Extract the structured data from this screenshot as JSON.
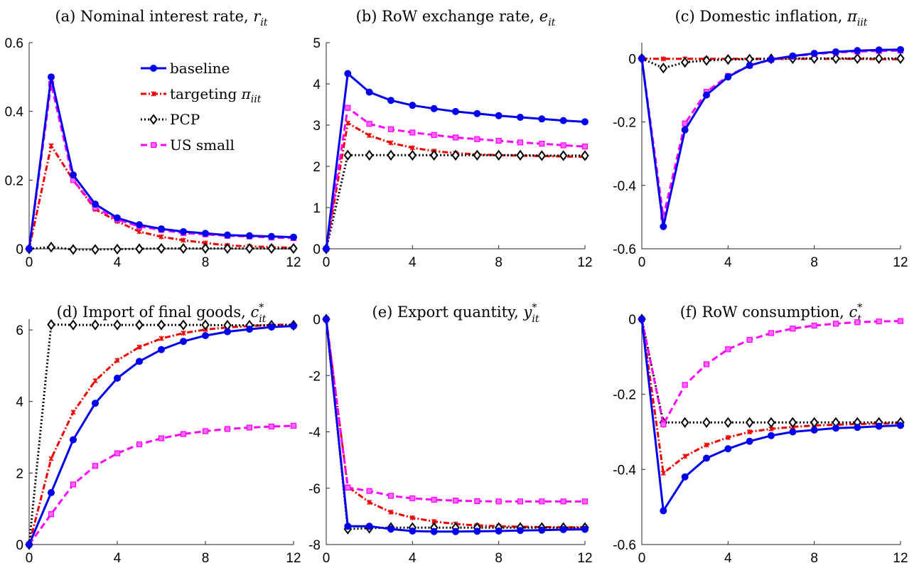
{
  "series_meta": [
    {
      "name": "baseline",
      "label_main": "baseline",
      "label_math": "",
      "label_sub": "",
      "label_sup": "",
      "color": "#0000ee",
      "dash": "",
      "marker": "circle"
    },
    {
      "name": "targeting πiit",
      "label_main": "targeting ",
      "label_math": "π",
      "label_sub": "iit",
      "label_sup": "",
      "color": "#ee0000",
      "dash": "8,3,2,3",
      "marker": "star"
    },
    {
      "name": "PCP",
      "label_main": "PCP",
      "label_math": "",
      "label_sub": "",
      "label_sup": "",
      "color": "#000000",
      "dash": "2,3",
      "marker": "diamond"
    },
    {
      "name": "US small",
      "label_main": "US small",
      "label_math": "",
      "label_sub": "",
      "label_sup": "",
      "color": "#ff00ff",
      "dash": "9,5",
      "marker": "square"
    }
  ],
  "chart_data": [
    {
      "type": "line",
      "title_text": "(a) Nominal interest rate, ",
      "title_math": "r",
      "title_sub": "it",
      "title_sup": "",
      "x": [
        0,
        1,
        2,
        3,
        4,
        5,
        6,
        7,
        8,
        9,
        10,
        11,
        12
      ],
      "xlim": [
        0,
        12
      ],
      "ylim": [
        0,
        0.6
      ],
      "xticks": [
        0,
        4,
        8,
        12
      ],
      "yticks": [
        0,
        0.2,
        0.4,
        0.6
      ],
      "ytick_labels": [
        "0",
        "0.2",
        "0.4",
        "0.6"
      ],
      "legend": true,
      "series": [
        {
          "name": "baseline",
          "values": [
            0,
            0.5,
            0.215,
            0.13,
            0.09,
            0.07,
            0.058,
            0.05,
            0.045,
            0.04,
            0.038,
            0.036,
            0.034
          ]
        },
        {
          "name": "targeting πiit",
          "values": [
            0,
            0.3,
            0.2,
            0.115,
            0.08,
            0.05,
            0.035,
            0.025,
            0.017,
            0.01,
            0.007,
            0.005,
            0.003
          ]
        },
        {
          "name": "PCP",
          "values": [
            0,
            0.005,
            -0.002,
            -0.002,
            -0.001,
            0,
            0.001,
            0.001,
            0.001,
            0.001,
            0.001,
            0.001,
            0.001
          ]
        },
        {
          "name": "US small",
          "values": [
            0,
            0.48,
            0.2,
            0.12,
            0.085,
            0.065,
            0.055,
            0.046,
            0.042,
            0.038,
            0.036,
            0.033,
            0.031
          ]
        }
      ]
    },
    {
      "type": "line",
      "title_text": "(b) RoW exchange rate, ",
      "title_math": "e",
      "title_sub": "it",
      "title_sup": "",
      "x": [
        0,
        1,
        2,
        3,
        4,
        5,
        6,
        7,
        8,
        9,
        10,
        11,
        12
      ],
      "xlim": [
        0,
        12
      ],
      "ylim": [
        0,
        5
      ],
      "xticks": [
        0,
        4,
        8,
        12
      ],
      "yticks": [
        0,
        1,
        2,
        3,
        4,
        5
      ],
      "ytick_labels": [
        "0",
        "1",
        "2",
        "3",
        "4",
        "5"
      ],
      "legend": false,
      "series": [
        {
          "name": "baseline",
          "values": [
            0,
            4.25,
            3.8,
            3.6,
            3.48,
            3.4,
            3.33,
            3.28,
            3.23,
            3.19,
            3.15,
            3.11,
            3.08
          ]
        },
        {
          "name": "targeting πiit",
          "values": [
            0,
            3.05,
            2.75,
            2.57,
            2.45,
            2.37,
            2.32,
            2.29,
            2.27,
            2.26,
            2.25,
            2.24,
            2.23
          ]
        },
        {
          "name": "PCP",
          "values": [
            0,
            2.27,
            2.27,
            2.27,
            2.27,
            2.27,
            2.27,
            2.27,
            2.27,
            2.27,
            2.26,
            2.26,
            2.26
          ]
        },
        {
          "name": "US small",
          "values": [
            0,
            3.42,
            3.03,
            2.9,
            2.82,
            2.76,
            2.7,
            2.66,
            2.62,
            2.58,
            2.55,
            2.51,
            2.48
          ]
        }
      ]
    },
    {
      "type": "line",
      "title_text": "(c) Domestic inflation, ",
      "title_math": "π",
      "title_sub": "iit",
      "title_sup": "",
      "x": [
        0,
        1,
        2,
        3,
        4,
        5,
        6,
        7,
        8,
        9,
        10,
        11,
        12
      ],
      "xlim": [
        0,
        12
      ],
      "ylim": [
        -0.6,
        0.05
      ],
      "xticks": [
        0,
        4,
        8,
        12
      ],
      "yticks": [
        -0.6,
        -0.4,
        -0.2,
        0
      ],
      "ytick_labels": [
        "-0.6",
        "-0.4",
        "-0.2",
        "0"
      ],
      "legend": false,
      "series": [
        {
          "name": "baseline",
          "values": [
            0,
            -0.53,
            -0.225,
            -0.115,
            -0.058,
            -0.022,
            -0.003,
            0.008,
            0.016,
            0.021,
            0.025,
            0.027,
            0.028
          ]
        },
        {
          "name": "targeting πiit",
          "values": [
            0,
            -0.001,
            -0.001,
            -0.001,
            -0.001,
            -0.001,
            -0.001,
            -0.001,
            -0.001,
            -0.001,
            -0.001,
            -0.002,
            -0.002
          ]
        },
        {
          "name": "PCP",
          "values": [
            0,
            -0.03,
            -0.012,
            -0.006,
            -0.003,
            -0.002,
            -0.001,
            0,
            0,
            0,
            0,
            0,
            0
          ]
        },
        {
          "name": "US small",
          "values": [
            0,
            -0.5,
            -0.205,
            -0.105,
            -0.055,
            -0.022,
            -0.004,
            0.007,
            0.014,
            0.019,
            0.022,
            0.024,
            0.025
          ]
        }
      ]
    },
    {
      "type": "line",
      "title_text": "(d) Import of final goods, ",
      "title_math": "c",
      "title_sub": "it",
      "title_sup": "*",
      "x": [
        0,
        1,
        2,
        3,
        4,
        5,
        6,
        7,
        8,
        9,
        10,
        11,
        12
      ],
      "xlim": [
        0,
        12
      ],
      "ylim": [
        0,
        6.3
      ],
      "xticks": [
        0,
        4,
        8,
        12
      ],
      "yticks": [
        0,
        2,
        4,
        6
      ],
      "ytick_labels": [
        "0",
        "2",
        "4",
        "6"
      ],
      "legend": false,
      "series": [
        {
          "name": "baseline",
          "values": [
            0,
            1.45,
            2.93,
            3.95,
            4.65,
            5.12,
            5.45,
            5.68,
            5.84,
            5.95,
            6.02,
            6.08,
            6.11
          ]
        },
        {
          "name": "targeting πiit",
          "values": [
            0,
            2.4,
            3.7,
            4.58,
            5.15,
            5.52,
            5.76,
            5.91,
            6.01,
            6.07,
            6.11,
            6.14,
            6.15
          ]
        },
        {
          "name": "PCP",
          "values": [
            0,
            6.15,
            6.14,
            6.14,
            6.14,
            6.14,
            6.14,
            6.14,
            6.14,
            6.13,
            6.13,
            6.13,
            6.13
          ]
        },
        {
          "name": "US small",
          "values": [
            0,
            0.85,
            1.68,
            2.2,
            2.55,
            2.8,
            2.97,
            3.09,
            3.17,
            3.23,
            3.27,
            3.3,
            3.32
          ]
        }
      ]
    },
    {
      "type": "line",
      "title_text": "(e) Export quantity, ",
      "title_math": "y",
      "title_sub": "it",
      "title_sup": "*",
      "x": [
        0,
        1,
        2,
        3,
        4,
        5,
        6,
        7,
        8,
        9,
        10,
        11,
        12
      ],
      "xlim": [
        0,
        12
      ],
      "ylim": [
        -8,
        0
      ],
      "xticks": [
        0,
        4,
        8,
        12
      ],
      "yticks": [
        -8,
        -6,
        -4,
        -2,
        0
      ],
      "ytick_labels": [
        "-8",
        "-6",
        "-4",
        "-2",
        "0"
      ],
      "legend": false,
      "series": [
        {
          "name": "baseline",
          "values": [
            0,
            -7.35,
            -7.35,
            -7.45,
            -7.52,
            -7.54,
            -7.54,
            -7.53,
            -7.52,
            -7.5,
            -7.49,
            -7.47,
            -7.46
          ]
        },
        {
          "name": "targeting πiit",
          "values": [
            0,
            -5.95,
            -6.5,
            -6.85,
            -7.05,
            -7.18,
            -7.27,
            -7.32,
            -7.35,
            -7.37,
            -7.38,
            -7.39,
            -7.39
          ]
        },
        {
          "name": "PCP",
          "values": [
            0,
            -7.45,
            -7.42,
            -7.4,
            -7.4,
            -7.4,
            -7.4,
            -7.4,
            -7.4,
            -7.4,
            -7.4,
            -7.4,
            -7.4
          ]
        },
        {
          "name": "US small",
          "values": [
            0,
            -5.98,
            -6.1,
            -6.27,
            -6.36,
            -6.41,
            -6.44,
            -6.46,
            -6.47,
            -6.47,
            -6.47,
            -6.47,
            -6.47
          ]
        }
      ]
    },
    {
      "type": "line",
      "title_text": "(f) RoW consumption, ",
      "title_math": "c",
      "title_sub": "t",
      "title_sup": "*",
      "x": [
        0,
        1,
        2,
        3,
        4,
        5,
        6,
        7,
        8,
        9,
        10,
        11,
        12
      ],
      "xlim": [
        0,
        12
      ],
      "ylim": [
        -0.6,
        0
      ],
      "xticks": [
        0,
        4,
        8,
        12
      ],
      "yticks": [
        -0.6,
        -0.4,
        -0.2,
        0
      ],
      "ytick_labels": [
        "-0.6",
        "-0.4",
        "-0.2",
        "0"
      ],
      "legend": false,
      "series": [
        {
          "name": "baseline",
          "values": [
            0,
            -0.51,
            -0.42,
            -0.37,
            -0.345,
            -0.325,
            -0.31,
            -0.3,
            -0.295,
            -0.29,
            -0.288,
            -0.285,
            -0.283
          ]
        },
        {
          "name": "targeting πiit",
          "values": [
            0,
            -0.41,
            -0.365,
            -0.335,
            -0.315,
            -0.3,
            -0.292,
            -0.287,
            -0.283,
            -0.281,
            -0.279,
            -0.278,
            -0.277
          ]
        },
        {
          "name": "PCP",
          "values": [
            0,
            -0.275,
            -0.275,
            -0.275,
            -0.275,
            -0.275,
            -0.275,
            -0.275,
            -0.275,
            -0.275,
            -0.275,
            -0.275,
            -0.275
          ]
        },
        {
          "name": "US small",
          "values": [
            0,
            -0.28,
            -0.175,
            -0.12,
            -0.08,
            -0.055,
            -0.037,
            -0.025,
            -0.017,
            -0.012,
            -0.008,
            -0.006,
            -0.005
          ]
        }
      ]
    }
  ]
}
